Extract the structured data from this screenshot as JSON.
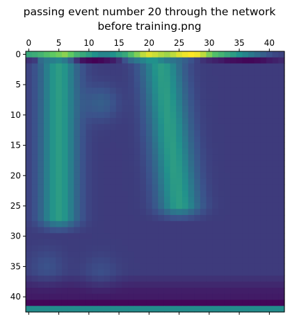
{
  "title_lines": [
    "passing event number 20 through the network",
    "before training.png"
  ],
  "chart_data": {
    "type": "heatmap",
    "title": "passing event number 20 through the network before training.png",
    "grid": false,
    "colormap": "viridis",
    "colormap_stops": [
      "#440154",
      "#3b528b",
      "#21918c",
      "#5ec962",
      "#fde725"
    ],
    "rows": 43,
    "cols": 43,
    "x_range": [
      -0.5,
      42.5
    ],
    "y_range": [
      -0.5,
      42.5
    ],
    "x_tick_position": "top",
    "x_ticks": [
      0,
      5,
      10,
      15,
      20,
      25,
      30,
      35,
      40
    ],
    "x_tick_labels": [
      "0",
      "5",
      "10",
      "15",
      "20",
      "25",
      "30",
      "35",
      "40"
    ],
    "y_ticks": [
      0,
      5,
      10,
      15,
      20,
      25,
      30,
      35,
      40
    ],
    "y_tick_labels": [
      "0",
      "5",
      "10",
      "15",
      "20",
      "25",
      "30",
      "35",
      "40"
    ],
    "value_range": [
      0,
      1
    ],
    "features": {
      "background_value": 0.18,
      "left_column": {
        "center_col": 5,
        "col_width": 2.2,
        "row_start": 1,
        "row_end": 27,
        "peak": 0.55
      },
      "right_column": {
        "center_col_top": 22,
        "center_col_bottom": 25,
        "col_width": 2.4,
        "row_start": 1,
        "row_end": 25,
        "peak": 0.55
      },
      "blob_a": {
        "row": 8,
        "col": 12,
        "value": 0.3
      },
      "blob_b": {
        "row": 35,
        "col": 3,
        "value": 0.25
      },
      "blob_c": {
        "row": 36,
        "col": 12,
        "value": 0.24
      },
      "top_row_values": [
        0.6,
        0.62,
        0.65,
        0.7,
        0.75,
        0.78,
        0.82,
        0.75,
        0.65,
        0.6,
        0.55,
        0.5,
        0.45,
        0.45,
        0.5,
        0.55,
        0.6,
        0.7,
        0.8,
        0.9,
        0.95,
        0.92,
        0.88,
        0.85,
        0.9,
        0.95,
        0.98,
        1.0,
        0.98,
        0.9,
        0.8,
        0.7,
        0.65,
        0.6,
        0.55,
        0.5,
        0.45,
        0.4,
        0.35,
        0.3,
        0.25,
        0.22,
        0.2
      ],
      "row_1_values": [
        0.15,
        0.18,
        0.35,
        0.4,
        0.42,
        0.45,
        0.4,
        0.3,
        0.15,
        0.05,
        0.02,
        0.0,
        0.02,
        0.05,
        0.08,
        0.15,
        0.25,
        0.35,
        0.4,
        0.45,
        0.5,
        0.5,
        0.45,
        0.4,
        0.38,
        0.35,
        0.3,
        0.25,
        0.2,
        0.15,
        0.12,
        0.1,
        0.08,
        0.05,
        0.04,
        0.03,
        0.02,
        0.02,
        0.03,
        0.05,
        0.08,
        0.1,
        0.12
      ],
      "row_40_value": 0.08,
      "row_41_value": 0.02,
      "row_42_value": 0.48
    }
  }
}
